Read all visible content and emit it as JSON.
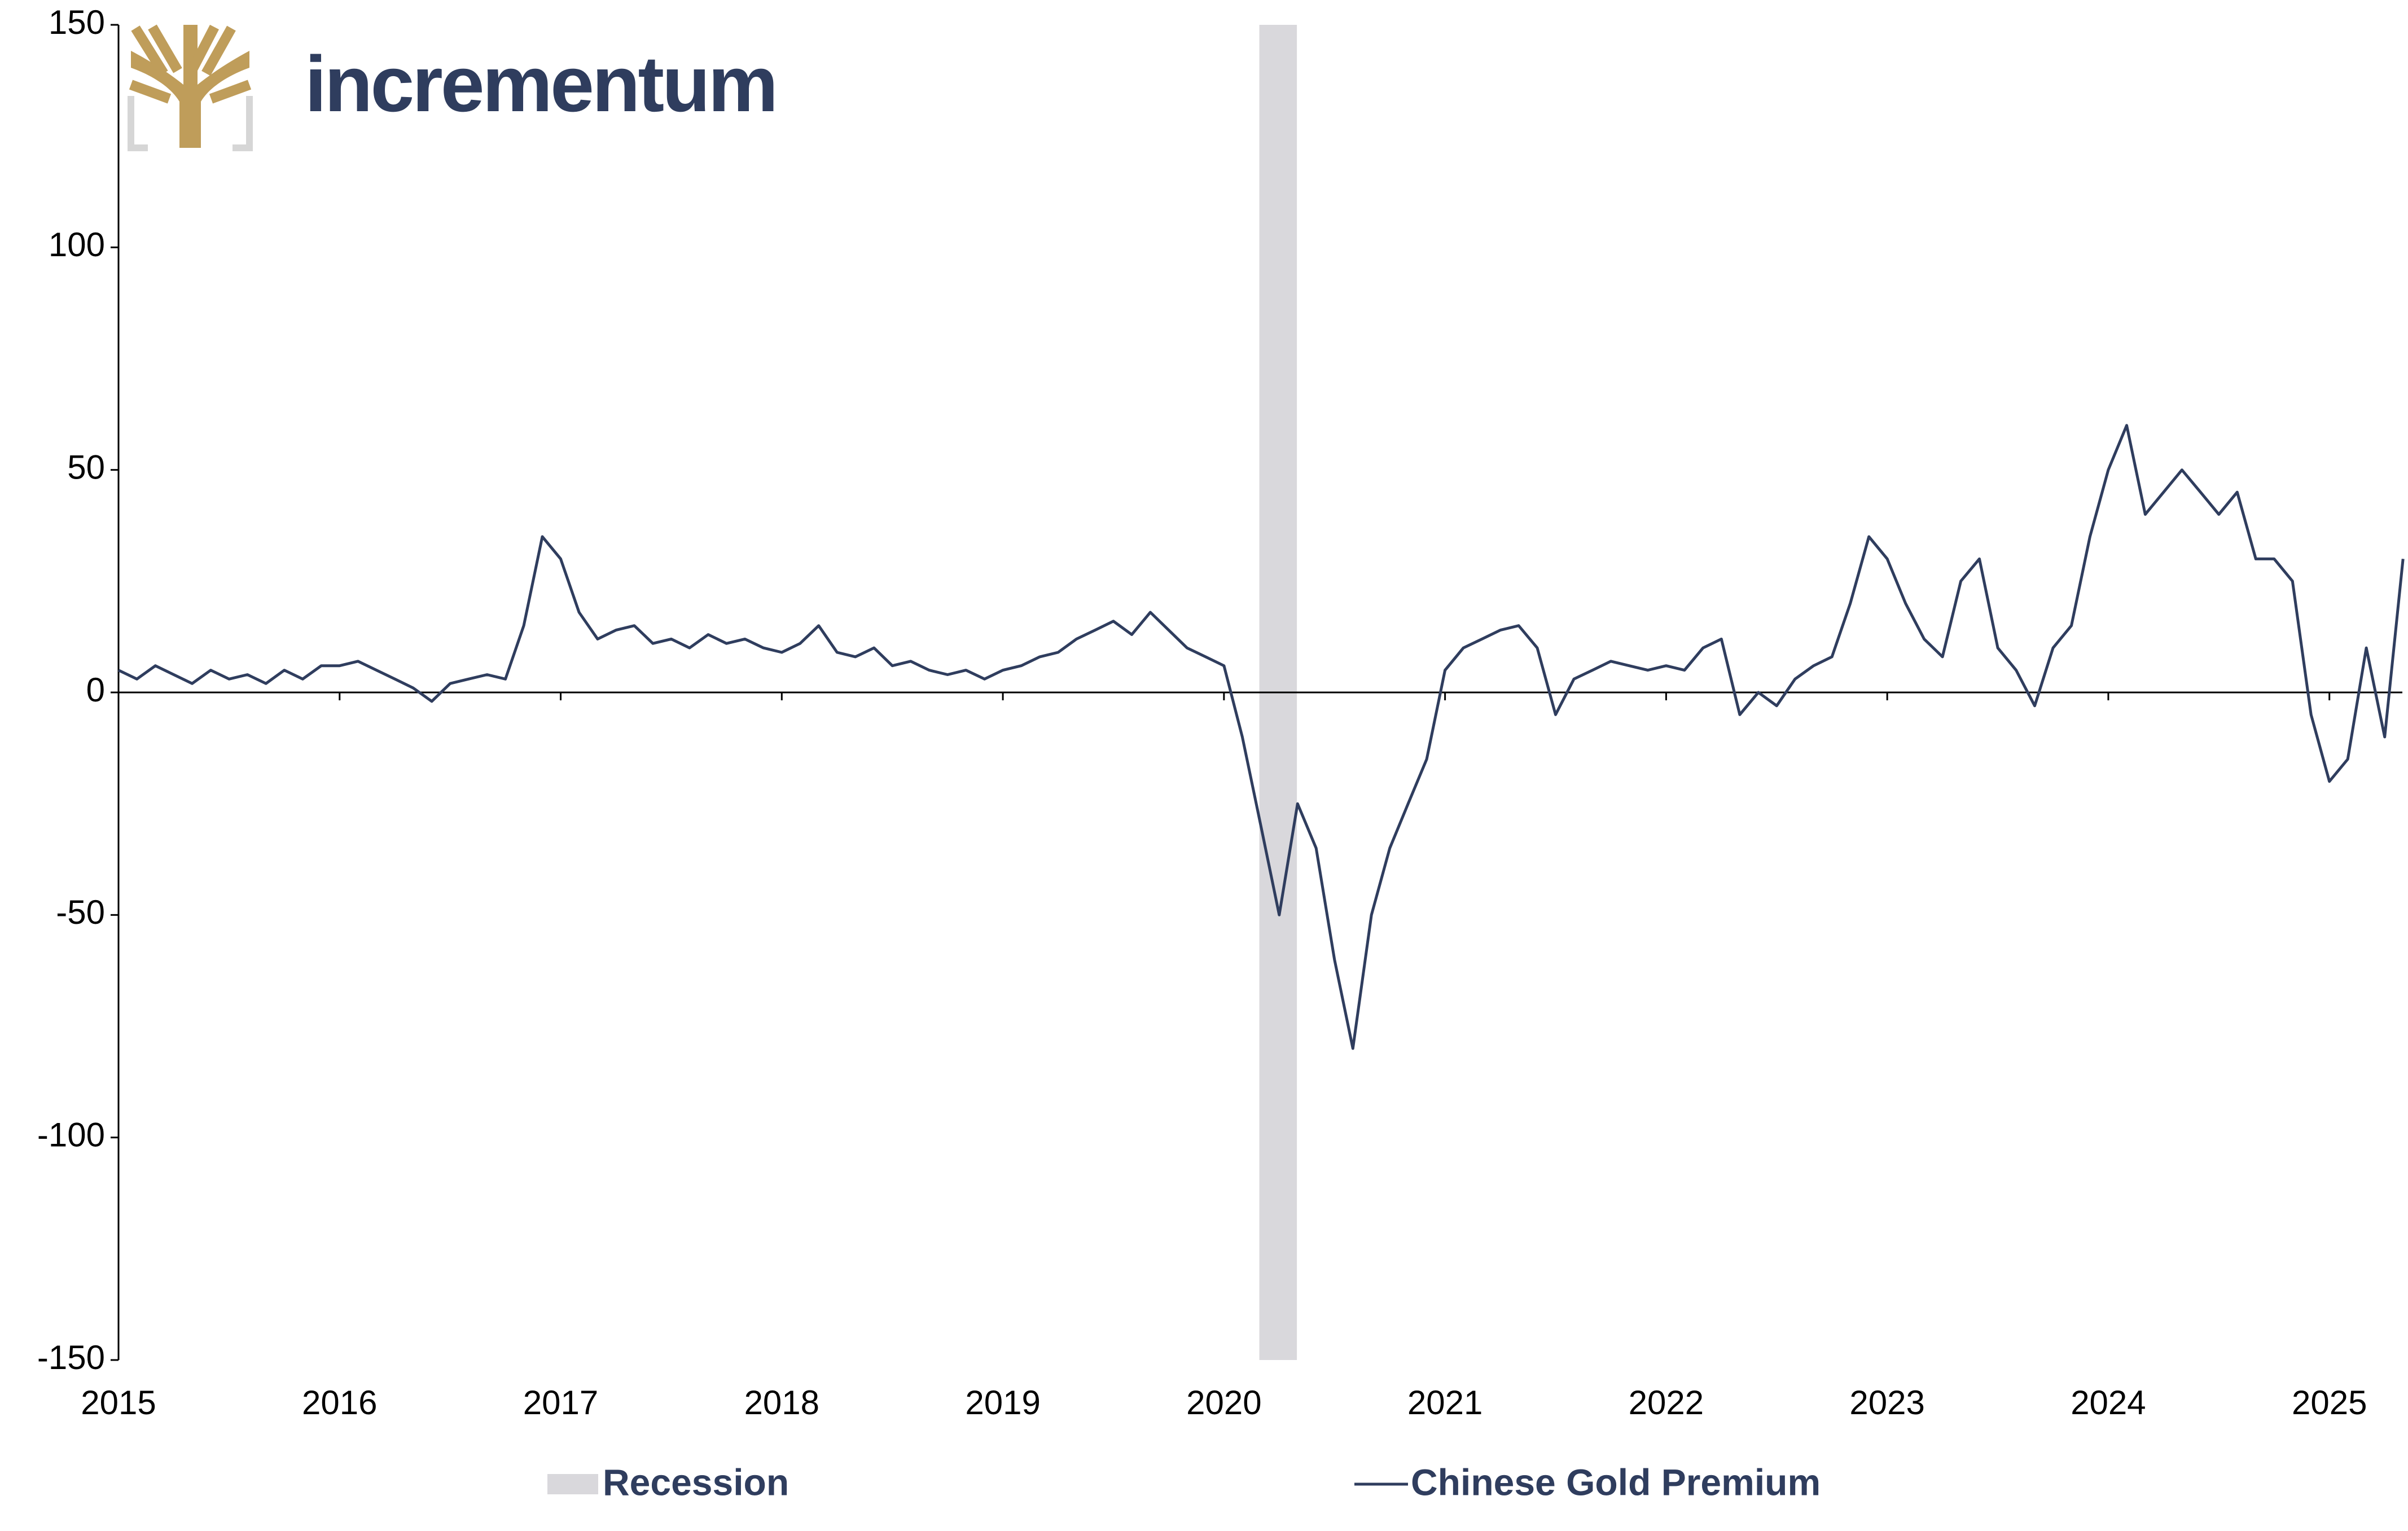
{
  "chart_data": {
    "type": "line",
    "logo": "incrementum",
    "xlim": [
      2015,
      2025.33
    ],
    "xticks": [
      2015,
      2016,
      2017,
      2018,
      2019,
      2020,
      2021,
      2022,
      2023,
      2024,
      2025
    ],
    "ylim": [
      -150,
      150
    ],
    "yticks": [
      -150,
      -100,
      -50,
      0,
      50,
      100,
      150
    ],
    "recession": {
      "name": "Recession",
      "color": "#d9d8dc",
      "start": 2020.16,
      "end": 2020.33
    },
    "x": [
      2015,
      2015.083,
      2015.167,
      2015.25,
      2015.333,
      2015.417,
      2015.5,
      2015.583,
      2015.667,
      2015.75,
      2015.833,
      2015.917,
      2016,
      2016.083,
      2016.167,
      2016.25,
      2016.333,
      2016.417,
      2016.5,
      2016.583,
      2016.667,
      2016.75,
      2016.833,
      2016.917,
      2017,
      2017.083,
      2017.167,
      2017.25,
      2017.333,
      2017.417,
      2017.5,
      2017.583,
      2017.667,
      2017.75,
      2017.833,
      2017.917,
      2018,
      2018.083,
      2018.167,
      2018.25,
      2018.333,
      2018.417,
      2018.5,
      2018.583,
      2018.667,
      2018.75,
      2018.833,
      2018.917,
      2019,
      2019.083,
      2019.167,
      2019.25,
      2019.333,
      2019.417,
      2019.5,
      2019.583,
      2019.667,
      2019.75,
      2019.833,
      2019.917,
      2020,
      2020.083,
      2020.167,
      2020.25,
      2020.333,
      2020.417,
      2020.5,
      2020.583,
      2020.667,
      2020.75,
      2020.833,
      2020.917,
      2021,
      2021.083,
      2021.167,
      2021.25,
      2021.333,
      2021.417,
      2021.5,
      2021.583,
      2021.667,
      2021.75,
      2021.833,
      2021.917,
      2022,
      2022.083,
      2022.167,
      2022.25,
      2022.333,
      2022.417,
      2022.5,
      2022.583,
      2022.667,
      2022.75,
      2022.833,
      2022.917,
      2023,
      2023.083,
      2023.167,
      2023.25,
      2023.333,
      2023.417,
      2023.5,
      2023.583,
      2023.667,
      2023.75,
      2023.833,
      2023.917,
      2024,
      2024.083,
      2024.167,
      2024.25,
      2024.333,
      2024.417,
      2024.5,
      2024.583,
      2024.667,
      2024.75,
      2024.833,
      2024.917,
      2025,
      2025.083,
      2025.167,
      2025.25,
      2025.333
    ],
    "series": [
      {
        "name": "Chinese Gold Premium",
        "color": "#2f3d5e",
        "values": [
          5,
          3,
          6,
          4,
          2,
          5,
          3,
          4,
          2,
          5,
          3,
          6,
          6,
          7,
          5,
          3,
          1,
          -2,
          2,
          3,
          4,
          3,
          15,
          35,
          30,
          18,
          12,
          14,
          15,
          11,
          12,
          10,
          13,
          11,
          12,
          10,
          9,
          11,
          15,
          9,
          8,
          10,
          6,
          7,
          5,
          4,
          5,
          3,
          5,
          6,
          8,
          9,
          12,
          14,
          16,
          13,
          18,
          14,
          10,
          8,
          6,
          -10,
          -30,
          -50,
          -25,
          -35,
          -60,
          -80,
          -50,
          -35,
          -25,
          -15,
          5,
          10,
          12,
          14,
          15,
          10,
          -5,
          3,
          5,
          7,
          6,
          5,
          6,
          5,
          10,
          12,
          -5,
          0,
          -3,
          3,
          6,
          8,
          20,
          35,
          30,
          20,
          12,
          8,
          25,
          30,
          10,
          5,
          -3,
          10,
          15,
          35,
          50,
          60,
          40,
          45,
          50,
          45,
          40,
          45,
          30,
          30,
          25,
          -5,
          -20,
          -15,
          10,
          -10,
          30
        ]
      }
    ]
  }
}
